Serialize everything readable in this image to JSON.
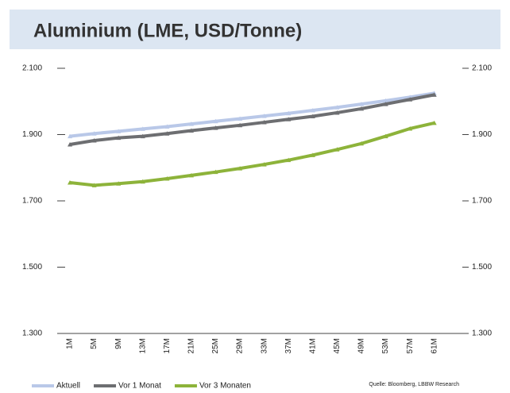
{
  "chart_data": {
    "type": "line",
    "title": "Aluminium (LME, USD/Tonne)",
    "source": "Quelle: Bloomberg, LBBW Research",
    "categories": [
      "1M",
      "5M",
      "9M",
      "13M",
      "17M",
      "21M",
      "25M",
      "29M",
      "33M",
      "37M",
      "41M",
      "45M",
      "49M",
      "53M",
      "57M",
      "61M"
    ],
    "series": [
      {
        "name": "Aktuell",
        "color": "#b9c8e8",
        "values": [
          1895,
          1903,
          1910,
          1917,
          1924,
          1932,
          1940,
          1948,
          1956,
          1964,
          1973,
          1982,
          1992,
          2002,
          2013,
          2025
        ]
      },
      {
        "name": "Vor 1 Monat",
        "color": "#6d6e71",
        "values": [
          1870,
          1882,
          1890,
          1895,
          1903,
          1912,
          1920,
          1928,
          1937,
          1946,
          1955,
          1966,
          1978,
          1992,
          2006,
          2020
        ]
      },
      {
        "name": "Vor 3 Monaten",
        "color": "#8db33a",
        "values": [
          1755,
          1747,
          1752,
          1758,
          1767,
          1777,
          1787,
          1798,
          1810,
          1823,
          1838,
          1855,
          1873,
          1895,
          1918,
          1935
        ]
      }
    ],
    "ylim": [
      1300,
      2100
    ],
    "yticks": [
      {
        "value": 1300,
        "label": "1.300"
      },
      {
        "value": 1500,
        "label": "1.500"
      },
      {
        "value": 1700,
        "label": "1.700"
      },
      {
        "value": 1900,
        "label": "1.900"
      },
      {
        "value": 2100,
        "label": "2.100"
      }
    ],
    "y2lim": [
      1300,
      2100
    ],
    "y2ticks": [
      {
        "value": 1300,
        "label": "1.300"
      },
      {
        "value": 1500,
        "label": "1.500"
      },
      {
        "value": 1700,
        "label": "1.700"
      },
      {
        "value": 1900,
        "label": "1.900"
      },
      {
        "value": 2100,
        "label": "2.100"
      }
    ],
    "grid": false,
    "legend": "bottom"
  }
}
